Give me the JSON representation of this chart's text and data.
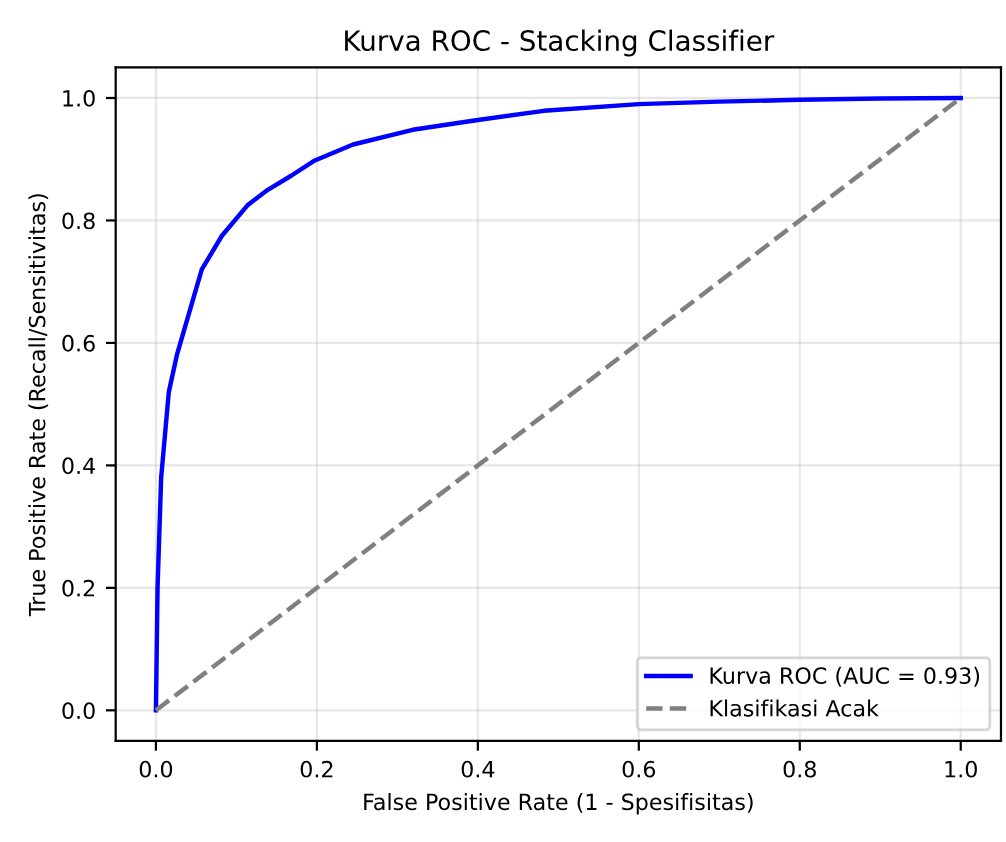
{
  "chart_data": {
    "type": "line",
    "title": "Kurva ROC - Stacking Classifier",
    "xlabel": "False Positive Rate (1 - Spesifisitas)",
    "ylabel": "True Positive Rate (Recall/Sensitivitas)",
    "series": [
      {
        "name": "Kurva ROC (AUC = 0.93)",
        "color": "#0000ff",
        "line_style": "solid",
        "x": [
          0,
          0.002,
          0.0065,
          0.016,
          0.026,
          0.037,
          0.057,
          0.082,
          0.114,
          0.139,
          0.168,
          0.196,
          0.245,
          0.319,
          0.4,
          0.482,
          0.6,
          0.7,
          0.8,
          0.9,
          1
        ],
        "values": [
          0,
          0.2,
          0.38,
          0.52,
          0.58,
          0.63,
          0.72,
          0.775,
          0.825,
          0.85,
          0.873,
          0.897,
          0.924,
          0.948,
          0.964,
          0.979,
          0.99,
          0.994,
          0.997,
          0.999,
          1
        ]
      },
      {
        "name": "Klasifikasi Acak",
        "color": "#808080",
        "line_style": "dashed",
        "x": [
          0,
          1
        ],
        "values": [
          0,
          1
        ]
      }
    ],
    "xlim": [
      -0.05,
      1.05
    ],
    "ylim": [
      -0.05,
      1.05
    ],
    "xticks": [
      {
        "value": 0,
        "label": "0.0"
      },
      0.2,
      0.4,
      0.6,
      0.8,
      {
        "value": 1,
        "label": "1.0"
      }
    ],
    "yticks": [
      {
        "value": 0,
        "label": "0.0"
      },
      0.2,
      0.4,
      0.6,
      0.8,
      {
        "value": 1,
        "label": "1.0"
      }
    ],
    "grid": true,
    "legend": "bottom right",
    "marker": "none"
  }
}
